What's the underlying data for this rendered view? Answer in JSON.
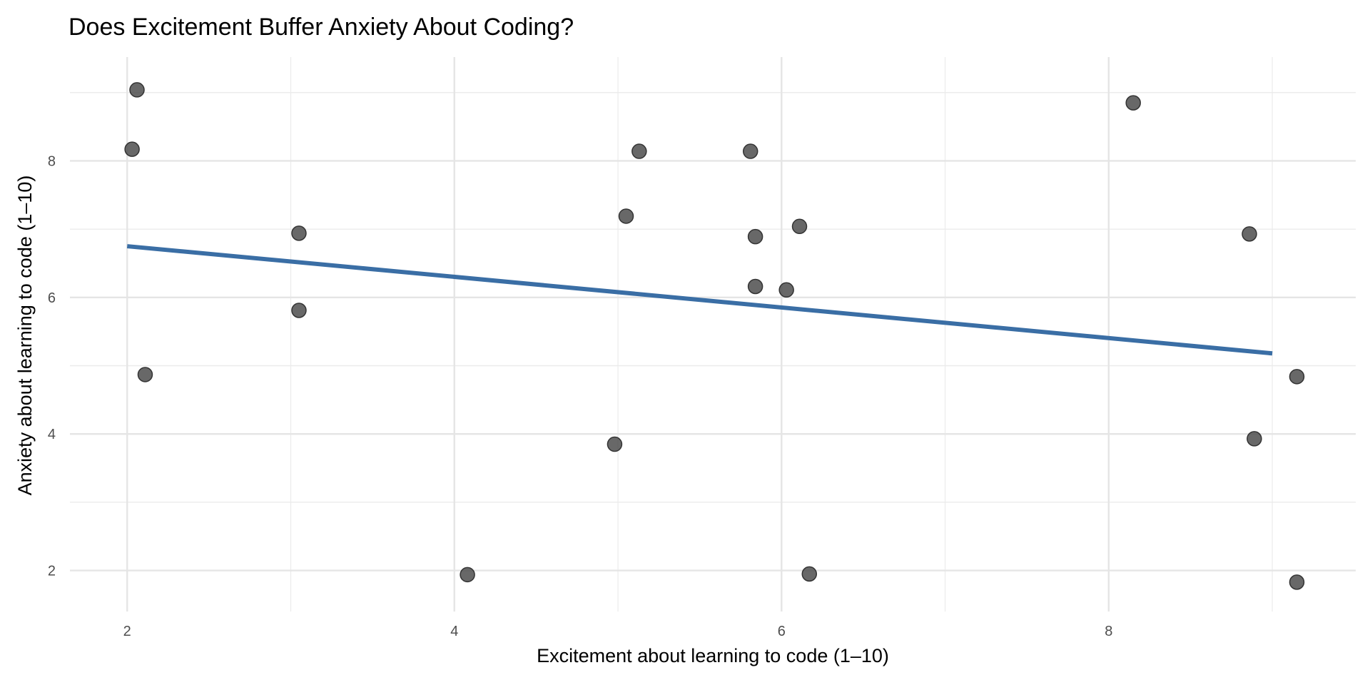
{
  "chart_data": {
    "type": "scatter",
    "title": "Does Excitement Buffer Anxiety About Coding?",
    "xlabel": "Excitement about learning to code (1–10)",
    "ylabel": "Anxiety about learning to code (1–10)",
    "xlim": [
      1.65,
      9.51
    ],
    "ylim": [
      1.4,
      9.52
    ],
    "xticks": [
      2,
      4,
      6,
      8
    ],
    "yticks": [
      2,
      4,
      6,
      8
    ],
    "grid": true,
    "point_color": "#4d4d4d",
    "line_color": "#3a6ea5",
    "points": [
      {
        "x": 2.06,
        "y": 9.04
      },
      {
        "x": 2.03,
        "y": 8.17
      },
      {
        "x": 2.11,
        "y": 4.87
      },
      {
        "x": 3.05,
        "y": 6.94
      },
      {
        "x": 3.05,
        "y": 5.81
      },
      {
        "x": 4.08,
        "y": 1.94
      },
      {
        "x": 4.98,
        "y": 3.85
      },
      {
        "x": 5.05,
        "y": 7.19
      },
      {
        "x": 5.13,
        "y": 8.14
      },
      {
        "x": 5.81,
        "y": 8.14
      },
      {
        "x": 5.84,
        "y": 6.89
      },
      {
        "x": 5.84,
        "y": 6.16
      },
      {
        "x": 6.03,
        "y": 6.11
      },
      {
        "x": 6.11,
        "y": 7.04
      },
      {
        "x": 6.17,
        "y": 1.95
      },
      {
        "x": 8.15,
        "y": 8.85
      },
      {
        "x": 8.86,
        "y": 6.93
      },
      {
        "x": 8.89,
        "y": 3.93
      },
      {
        "x": 9.15,
        "y": 4.84
      },
      {
        "x": 9.15,
        "y": 1.83
      }
    ],
    "trend_line": {
      "x": [
        2,
        9
      ],
      "y": [
        6.75,
        5.18
      ]
    }
  }
}
